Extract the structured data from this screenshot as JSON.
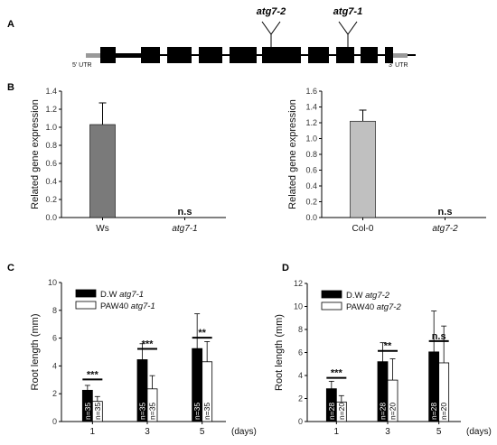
{
  "panel_a": {
    "letter": "A",
    "utr5": "5' UTR",
    "utr3": "3' UTR",
    "insertions": [
      {
        "label": "atg7-2"
      },
      {
        "label": "atg7-1"
      }
    ]
  },
  "chart_data": [
    {
      "id": "B-left",
      "panel_letter": "B",
      "type": "bar",
      "ylabel": "Related gene expression",
      "ylim": [
        0,
        1.4
      ],
      "yticks": [
        "0.0",
        "0.2",
        "0.4",
        "0.6",
        "0.8",
        "1.0",
        "1.2",
        "1.4"
      ],
      "categories": [
        "Ws",
        "atg7-1"
      ],
      "values": [
        1.03,
        0
      ],
      "errors": [
        0.24,
        0
      ],
      "colors": [
        "#7a7a7a",
        "#ffffff"
      ],
      "annotations": [
        {
          "category": 1,
          "text": "n.s"
        }
      ]
    },
    {
      "id": "B-right",
      "type": "bar",
      "ylabel": "Related gene expression",
      "ylim": [
        0,
        1.6
      ],
      "yticks": [
        "0.0",
        "0.2",
        "0.4",
        "0.6",
        "0.8",
        "1.0",
        "1.2",
        "1.4",
        "1.6"
      ],
      "categories": [
        "Col-0",
        "atg7-2"
      ],
      "values": [
        1.22,
        0
      ],
      "errors": [
        0.14,
        0
      ],
      "colors": [
        "#c0c0c0",
        "#ffffff"
      ],
      "annotations": [
        {
          "category": 1,
          "text": "n.s"
        }
      ]
    },
    {
      "id": "C",
      "panel_letter": "C",
      "type": "bar",
      "ylabel": "Root length (mm)",
      "xunit": "(days)",
      "ylim": [
        0,
        10
      ],
      "yticks": [
        "0",
        "2",
        "4",
        "6",
        "8",
        "10"
      ],
      "categories": [
        "1",
        "3",
        "5"
      ],
      "series": [
        {
          "name_prefix": "D.W",
          "name_italic": "atg7-1",
          "color": "#000000",
          "values": [
            2.25,
            4.45,
            5.25
          ],
          "errors": [
            0.35,
            1.15,
            2.5
          ],
          "n_labels": [
            "n=35",
            "n=35",
            "n=35"
          ]
        },
        {
          "name_prefix": "PAW40",
          "name_italic": "atg7-1",
          "color": "#ffffff",
          "values": [
            1.45,
            2.35,
            4.3
          ],
          "errors": [
            0.35,
            0.95,
            1.45
          ],
          "n_labels": [
            "n=35",
            "n=35",
            "n=35"
          ]
        }
      ],
      "significance": [
        "***",
        "***",
        "**"
      ]
    },
    {
      "id": "D",
      "panel_letter": "D",
      "type": "bar",
      "ylabel": "Root length (mm)",
      "xunit": "(days)",
      "ylim": [
        0,
        12
      ],
      "yticks": [
        "0",
        "2",
        "4",
        "6",
        "8",
        "10",
        "12"
      ],
      "categories": [
        "1",
        "3",
        "5"
      ],
      "series": [
        {
          "name_prefix": "D.W",
          "name_italic": "atg7-2",
          "color": "#000000",
          "values": [
            2.85,
            5.2,
            6.05
          ],
          "errors": [
            0.65,
            1.65,
            3.55
          ],
          "n_labels": [
            "n=28",
            "n=28",
            "n=28"
          ]
        },
        {
          "name_prefix": "PAW40",
          "name_italic": "atg7-2",
          "color": "#ffffff",
          "values": [
            1.7,
            3.6,
            5.1
          ],
          "errors": [
            0.55,
            1.85,
            3.2
          ],
          "n_labels": [
            "n=20",
            "n=20",
            "n=20"
          ]
        }
      ],
      "significance": [
        "***",
        "**",
        "n.s"
      ]
    }
  ]
}
